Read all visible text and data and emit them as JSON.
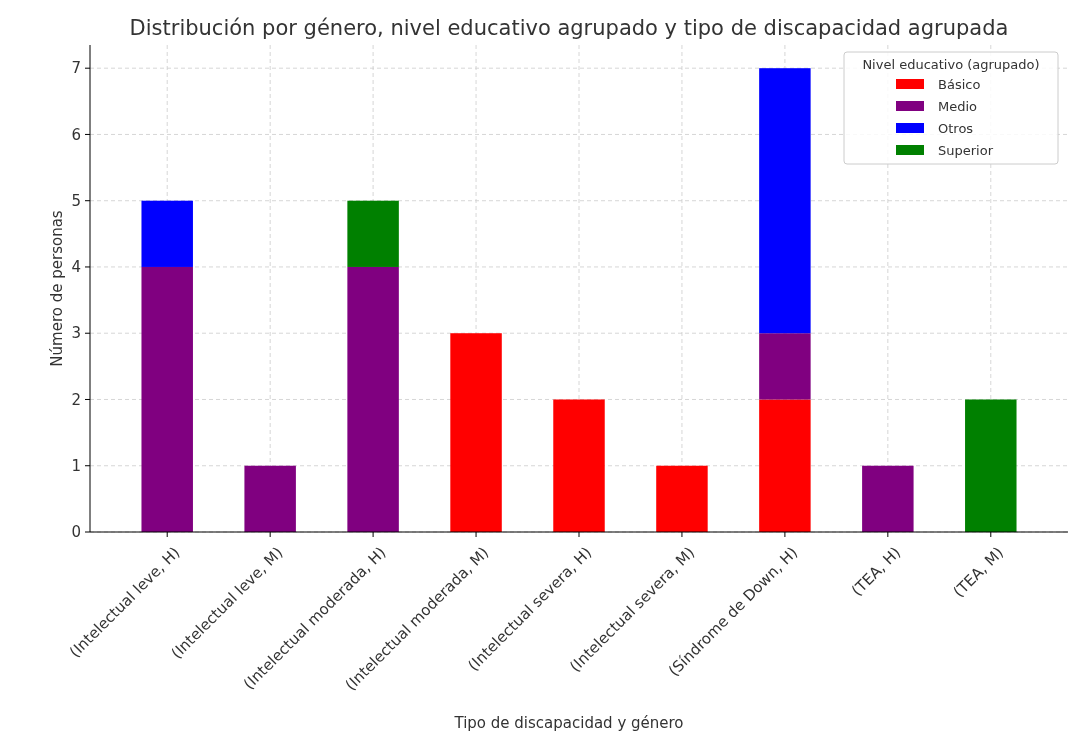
{
  "chart_data": {
    "type": "bar",
    "stacked": true,
    "title": "Distribución por género, nivel educativo agrupado y tipo de discapacidad agrupada",
    "xlabel": "Tipo de discapacidad y género",
    "ylabel": "Número de personas",
    "legend_title": "Nivel educativo (agrupado)",
    "legend": "top right",
    "grid": true,
    "categories": [
      "(Intelectual leve, H)",
      "(Intelectual leve, M)",
      "(Intelectual moderada, H)",
      "(Intelectual moderada, M)",
      "(Intelectual severa, H)",
      "(Intelectual severa, M)",
      "(Síndrome de Down, H)",
      "(TEA, H)",
      "(TEA, M)"
    ],
    "ylim": [
      0,
      7.35
    ],
    "yticks": [
      0,
      1,
      2,
      3,
      4,
      5,
      6,
      7
    ],
    "series": [
      {
        "name": "Básico",
        "color": "#ff0000",
        "values": [
          0,
          0,
          0,
          3,
          2,
          1,
          2,
          0,
          0
        ]
      },
      {
        "name": "Medio",
        "color": "#800080",
        "values": [
          4,
          1,
          4,
          0,
          0,
          0,
          1,
          1,
          0
        ]
      },
      {
        "name": "Otros",
        "color": "#0000ff",
        "values": [
          1,
          0,
          0,
          0,
          0,
          0,
          4,
          0,
          0
        ]
      },
      {
        "name": "Superior",
        "color": "#008000",
        "values": [
          0,
          0,
          1,
          0,
          0,
          0,
          0,
          0,
          2
        ]
      }
    ]
  }
}
